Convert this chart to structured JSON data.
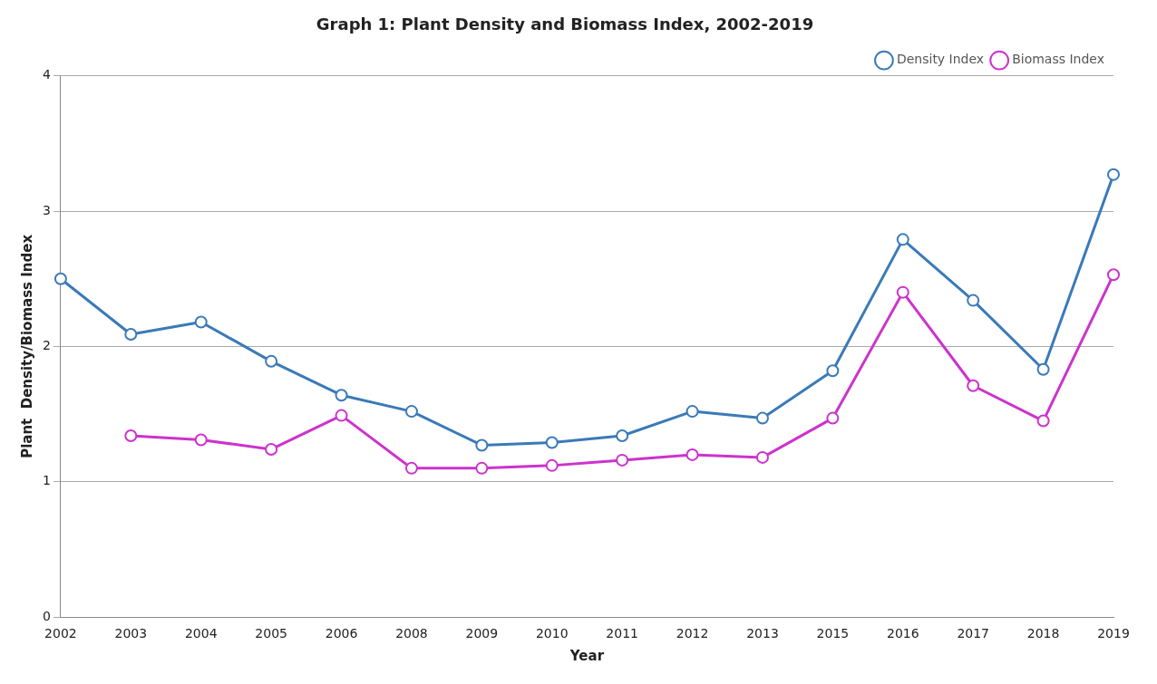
{
  "chart_data": {
    "type": "line",
    "title": "Graph 1: Plant Density and Biomass Index, 2002-2019",
    "xlabel": "Year",
    "ylabel": "Plant  Density/Biomass Index",
    "categories": [
      "2002",
      "2003",
      "2004",
      "2005",
      "2006",
      "2008",
      "2009",
      "2010",
      "2011",
      "2012",
      "2013",
      "2015",
      "2016",
      "2017",
      "2018",
      "2019"
    ],
    "series": [
      {
        "name": "Density Index",
        "color": "#3a7ab8",
        "values": [
          2.5,
          2.09,
          2.18,
          1.89,
          1.64,
          1.52,
          1.27,
          1.29,
          1.34,
          1.52,
          1.47,
          1.82,
          2.79,
          2.34,
          1.83,
          3.27
        ]
      },
      {
        "name": "Biomass Index",
        "color": "#cc33cc",
        "values": [
          null,
          1.34,
          1.31,
          1.24,
          1.49,
          1.1,
          1.1,
          1.12,
          1.16,
          1.2,
          1.18,
          1.47,
          2.4,
          1.71,
          1.45,
          2.53
        ]
      }
    ],
    "ylim": [
      0,
      4
    ],
    "yticks": [
      0,
      1,
      2,
      3,
      4
    ],
    "grid": "y",
    "legend": "top right",
    "marker": "circle",
    "line_style": "solid"
  }
}
